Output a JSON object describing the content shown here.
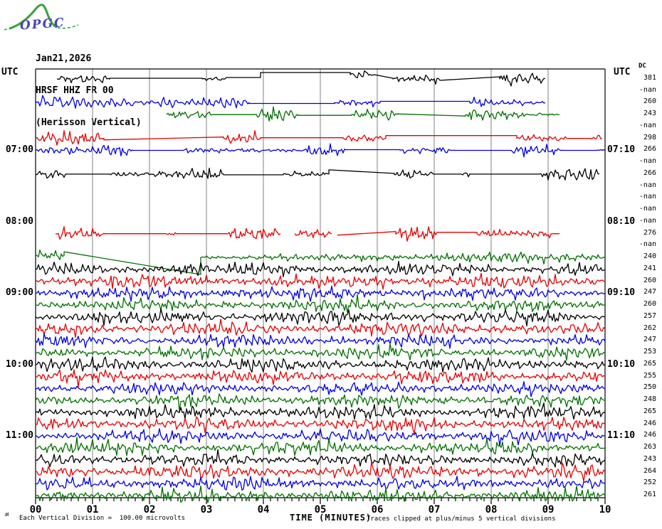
{
  "logo": {
    "text": "OPGC"
  },
  "title": {
    "date": "Jan21,2026",
    "station": "HRSF HHZ FR 00",
    "instrument": "(Herisson Vertical)"
  },
  "corner_labels": {
    "utc_left": "UTC",
    "utc_right": "UTC",
    "dc_header": "DC"
  },
  "footer": {
    "mini_mark": "ʍ",
    "scale_note": "Each Vertical Division =  100.00 microvolts",
    "xlabel": "TIME (MINUTES)",
    "clip_note": "Traces clipped at plus/minus 5 vertical divisions"
  },
  "chart_data": {
    "type": "line",
    "kind": "helicorder-seismogram",
    "xlabel": "TIME (MINUTES)",
    "x_ticks": [
      "00",
      "01",
      "02",
      "03",
      "04",
      "05",
      "06",
      "07",
      "08",
      "09",
      "10"
    ],
    "x_range_minutes": [
      0,
      10
    ],
    "minutes_per_row": 10,
    "grid": "vertical line each minute",
    "legend": "none",
    "colors": {
      "black": "#000000",
      "red": "#e60000",
      "blue": "#0000e0",
      "green": "#007000",
      "grid": "#808080",
      "text": "#000000",
      "logo_green": "#3aa23a",
      "logo_blue": "#4343bd"
    },
    "color_cycle": [
      "black",
      "red",
      "blue",
      "green"
    ],
    "left_time_labels": [
      {
        "row": 7,
        "label": "07:00"
      },
      {
        "row": 13,
        "label": "08:00"
      },
      {
        "row": 19,
        "label": "09:00"
      },
      {
        "row": 25,
        "label": "10:00"
      },
      {
        "row": 31,
        "label": "11:00"
      }
    ],
    "right_time_labels": [
      {
        "row": 7,
        "label": "07:10"
      },
      {
        "row": 13,
        "label": "08:10"
      },
      {
        "row": 19,
        "label": "09:10"
      },
      {
        "row": 25,
        "label": "10:10"
      },
      {
        "row": 31,
        "label": "11:10"
      }
    ],
    "rows": [
      {
        "value": "381",
        "color": "black",
        "segments": [
          [
            "n",
            0.37,
            1.3,
            5
          ],
          [
            "l",
            1.3,
            2.93,
            -1,
            -1
          ],
          [
            "n",
            2.93,
            3.35,
            4
          ],
          [
            "l",
            3.35,
            3.95,
            -2,
            -2
          ],
          [
            "l",
            3.95,
            5.52,
            -9,
            -9
          ],
          [
            "n",
            5.52,
            5.95,
            4,
            -6
          ],
          [
            "l",
            5.95,
            6.28,
            -6,
            -1
          ],
          [
            "n",
            6.28,
            7.1,
            6
          ],
          [
            "l",
            7.1,
            8.15,
            2,
            -3
          ],
          [
            "n",
            8.15,
            8.95,
            6
          ]
        ]
      },
      {
        "value": "-nan",
        "color": "red",
        "segments": []
      },
      {
        "value": "260",
        "color": "blue",
        "segments": [
          [
            "n",
            0,
            2.1,
            6
          ],
          [
            "n",
            2.1,
            2.55,
            9
          ],
          [
            "n",
            2.55,
            3.75,
            5
          ],
          [
            "l",
            3.75,
            5.25,
            1,
            1
          ],
          [
            "n",
            5.25,
            6.05,
            5
          ],
          [
            "l",
            6.05,
            7.62,
            -2,
            -2
          ],
          [
            "n",
            7.62,
            8.6,
            5
          ],
          [
            "n",
            8.6,
            8.95,
            3
          ]
        ]
      },
      {
        "value": "243",
        "color": "green",
        "segments": [
          [
            "n",
            2.3,
            3.1,
            7
          ],
          [
            "l",
            3.1,
            3.85,
            0,
            0
          ],
          [
            "n",
            3.85,
            4.6,
            7
          ],
          [
            "l",
            4.6,
            5.55,
            1,
            1
          ],
          [
            "n",
            5.55,
            6.35,
            8
          ],
          [
            "l",
            6.35,
            7.55,
            -1,
            2
          ],
          [
            "n",
            7.55,
            8.65,
            6
          ],
          [
            "n",
            8.65,
            9.2,
            3
          ]
        ]
      },
      {
        "value": "-nan",
        "color": "black",
        "segments": []
      },
      {
        "value": "298",
        "color": "red",
        "segments": [
          [
            "n",
            0,
            1.2,
            6
          ],
          [
            "l",
            1.2,
            3.3,
            2,
            -2
          ],
          [
            "n",
            3.3,
            3.95,
            5
          ],
          [
            "l",
            3.95,
            5.4,
            -1,
            -1
          ],
          [
            "n",
            5.4,
            6.15,
            7
          ],
          [
            "l",
            6.15,
            8.45,
            -4,
            -4
          ],
          [
            "n",
            8.45,
            9.35,
            6
          ],
          [
            "l",
            9.35,
            9.75,
            0,
            0
          ],
          [
            "n",
            9.75,
            9.95,
            5
          ]
        ]
      },
      {
        "value": "266",
        "color": "blue",
        "segments": [
          [
            "n",
            0,
            1.7,
            6
          ],
          [
            "l",
            1.7,
            2.6,
            0,
            0
          ],
          [
            "n",
            2.6,
            4.0,
            4
          ],
          [
            "n",
            4.0,
            4.7,
            2
          ],
          [
            "n",
            4.7,
            5.45,
            5
          ],
          [
            "l",
            5.45,
            6.4,
            -1,
            -1
          ],
          [
            "n",
            6.4,
            7.35,
            5
          ],
          [
            "l",
            7.35,
            8.35,
            0,
            0
          ],
          [
            "n",
            8.35,
            9.25,
            5
          ],
          [
            "l",
            9.25,
            9.85,
            0,
            0
          ],
          [
            "n",
            9.85,
            10,
            6
          ]
        ]
      },
      {
        "value": "-nan",
        "color": "green",
        "segments": []
      },
      {
        "value": "266",
        "color": "black",
        "segments": [
          [
            "n",
            0,
            0.55,
            4
          ],
          [
            "l",
            0.55,
            1.3,
            0,
            0
          ],
          [
            "n",
            1.3,
            3.3,
            5
          ],
          [
            "l",
            3.3,
            4.35,
            1,
            1
          ],
          [
            "n",
            4.35,
            5.15,
            5
          ],
          [
            "l",
            5.15,
            6.3,
            -6,
            -1
          ],
          [
            "n",
            6.3,
            7.0,
            4
          ],
          [
            "l",
            7.0,
            7.48,
            0,
            0
          ],
          [
            "n",
            7.48,
            7.65,
            5
          ],
          [
            "l",
            7.65,
            8.85,
            0,
            0
          ],
          [
            "n",
            8.85,
            9.9,
            6
          ]
        ]
      },
      {
        "value": "-nan",
        "color": "red",
        "segments": []
      },
      {
        "value": "-nan",
        "color": "blue",
        "segments": []
      },
      {
        "value": "-nan",
        "color": "green",
        "segments": []
      },
      {
        "value": "-nan",
        "color": "black",
        "segments": []
      },
      {
        "value": "276",
        "color": "red",
        "segments": [
          [
            "n",
            0.35,
            1.2,
            6
          ],
          [
            "l",
            1.2,
            2.25,
            0,
            0
          ],
          [
            "n",
            2.25,
            2.5,
            3
          ],
          [
            "l",
            2.5,
            3.35,
            0,
            0
          ],
          [
            "n",
            3.35,
            4.3,
            5
          ],
          [
            "n",
            4.55,
            5.2,
            6
          ],
          [
            "l",
            5.3,
            6.33,
            2,
            -3
          ],
          [
            "n",
            6.33,
            7.05,
            6
          ],
          [
            "l",
            7.05,
            7.75,
            -2,
            -2
          ],
          [
            "n",
            7.75,
            9.1,
            6
          ],
          [
            "l",
            9.1,
            9.2,
            0,
            0
          ]
        ]
      },
      {
        "value": "-nan",
        "color": "blue",
        "segments": []
      },
      {
        "value": "240",
        "color": "green",
        "segments": [
          [
            "n",
            0,
            0.5,
            9,
            -3
          ],
          [
            "l",
            0.5,
            2.9,
            -8,
            24
          ],
          [
            "n",
            2.9,
            5.55,
            3
          ],
          [
            "n",
            5.55,
            10,
            5
          ]
        ]
      },
      {
        "value": "241",
        "color": "black",
        "segments": [
          [
            "n",
            0,
            10,
            5.5
          ]
        ]
      },
      {
        "value": "260",
        "color": "red",
        "segments": [
          [
            "n",
            0,
            10,
            6
          ]
        ]
      },
      {
        "value": "247",
        "color": "blue",
        "segments": [
          [
            "n",
            0,
            10,
            5.5
          ]
        ]
      },
      {
        "value": "260",
        "color": "green",
        "segments": [
          [
            "n",
            0,
            10,
            5.5
          ]
        ]
      },
      {
        "value": "257",
        "color": "black",
        "segments": [
          [
            "n",
            0,
            10,
            6
          ]
        ]
      },
      {
        "value": "262",
        "color": "red",
        "segments": [
          [
            "n",
            0,
            10,
            6
          ]
        ]
      },
      {
        "value": "247",
        "color": "blue",
        "segments": [
          [
            "n",
            0,
            10,
            5.5
          ]
        ]
      },
      {
        "value": "253",
        "color": "green",
        "segments": [
          [
            "n",
            0,
            10,
            5.5
          ]
        ]
      },
      {
        "value": "265",
        "color": "black",
        "segments": [
          [
            "n",
            0,
            10,
            6
          ]
        ]
      },
      {
        "value": "255",
        "color": "red",
        "segments": [
          [
            "n",
            0,
            10,
            6
          ]
        ]
      },
      {
        "value": "250",
        "color": "blue",
        "segments": [
          [
            "n",
            0,
            10,
            5.5
          ]
        ]
      },
      {
        "value": "248",
        "color": "green",
        "segments": [
          [
            "n",
            0,
            10,
            5.5
          ]
        ]
      },
      {
        "value": "265",
        "color": "black",
        "segments": [
          [
            "n",
            0,
            10,
            6
          ]
        ]
      },
      {
        "value": "246",
        "color": "red",
        "segments": [
          [
            "n",
            0,
            10,
            6
          ]
        ]
      },
      {
        "value": "246",
        "color": "blue",
        "segments": [
          [
            "n",
            0,
            10,
            6
          ]
        ]
      },
      {
        "value": "263",
        "color": "green",
        "segments": [
          [
            "n",
            0,
            10,
            6
          ]
        ]
      },
      {
        "value": "243",
        "color": "black",
        "segments": [
          [
            "n",
            0,
            10,
            6
          ]
        ]
      },
      {
        "value": "264",
        "color": "red",
        "segments": [
          [
            "n",
            0,
            10,
            6.5
          ]
        ]
      },
      {
        "value": "252",
        "color": "blue",
        "segments": [
          [
            "n",
            0,
            10,
            6
          ]
        ]
      },
      {
        "value": "261",
        "color": "green",
        "segments": [
          [
            "n",
            0,
            10,
            6
          ]
        ]
      }
    ]
  }
}
